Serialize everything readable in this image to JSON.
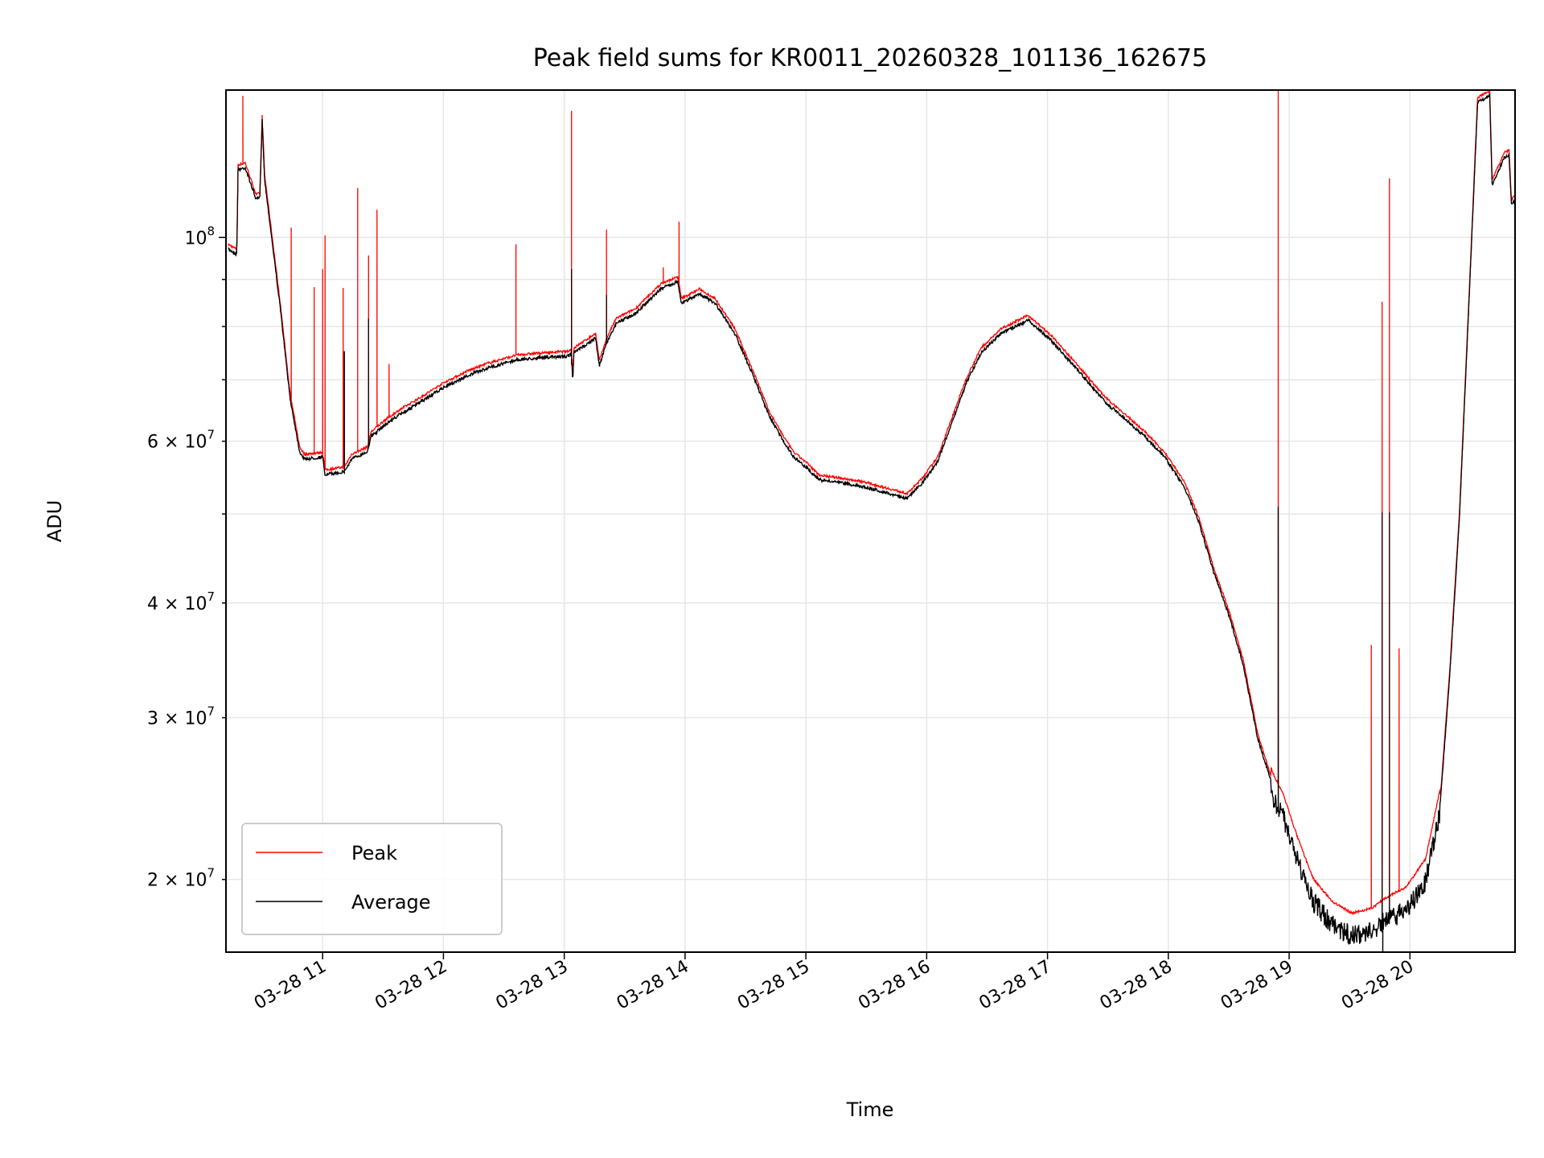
{
  "chart_data": {
    "type": "line",
    "title": "Peak field sums for KR0011_20260328_101136_162675",
    "xlabel": "Time",
    "ylabel": "ADU",
    "xscale": "time (hours of day)",
    "yscale": "log",
    "xlim": [
      10.2,
      20.87
    ],
    "ylim": [
      16670000,
      144700000
    ],
    "grid": true,
    "legend_position": "lower-left",
    "x_ticks": [
      {
        "value": 11,
        "label": "03-28 11"
      },
      {
        "value": 12,
        "label": "03-28 12"
      },
      {
        "value": 13,
        "label": "03-28 13"
      },
      {
        "value": 14,
        "label": "03-28 14"
      },
      {
        "value": 15,
        "label": "03-28 15"
      },
      {
        "value": 16,
        "label": "03-28 16"
      },
      {
        "value": 17,
        "label": "03-28 17"
      },
      {
        "value": 18,
        "label": "03-28 18"
      },
      {
        "value": 19,
        "label": "03-28 19"
      },
      {
        "value": 20,
        "label": "03-28 20"
      }
    ],
    "y_ticks_major": [
      {
        "value": 100000000,
        "mantissa": "10",
        "exp": "8",
        "times": ""
      }
    ],
    "y_ticks_minor_labeled": [
      {
        "value": 20000000,
        "mantissa": "2",
        "times": " × 10",
        "exp": "7"
      },
      {
        "value": 30000000,
        "mantissa": "3",
        "times": " × 10",
        "exp": "7"
      },
      {
        "value": 40000000,
        "mantissa": "4",
        "times": " × 10",
        "exp": "7"
      },
      {
        "value": 60000000,
        "mantissa": "6",
        "times": " × 10",
        "exp": "7"
      }
    ],
    "y_ticks_minor_unlabeled": [
      50000000,
      70000000,
      80000000,
      90000000
    ],
    "series": [
      {
        "name": "Peak",
        "color": "#ff0000",
        "spikes": [
          [
            10.34,
            142600000
          ],
          [
            10.5,
            135400000
          ],
          [
            10.74,
            102500000
          ],
          [
            10.93,
            88300000
          ],
          [
            11.0,
            92400000
          ],
          [
            11.02,
            100500000
          ],
          [
            11.17,
            88100000
          ],
          [
            11.29,
            113200000
          ],
          [
            11.38,
            95600000
          ],
          [
            11.45,
            107200000
          ],
          [
            11.55,
            72800000
          ],
          [
            12.6,
            98300000
          ],
          [
            13.06,
            137400000
          ],
          [
            13.35,
            102000000
          ],
          [
            13.82,
            92800000
          ],
          [
            13.95,
            104000000
          ],
          [
            18.91,
            144700000
          ],
          [
            19.68,
            36000000
          ],
          [
            19.77,
            85100000
          ],
          [
            19.83,
            116000000
          ],
          [
            19.91,
            35700000
          ]
        ]
      },
      {
        "name": "Average",
        "color": "#000000",
        "points": [
          [
            10.22,
            97500000
          ],
          [
            10.29,
            96300000
          ],
          [
            10.3,
            119000000
          ],
          [
            10.36,
            119600000
          ],
          [
            10.45,
            110400000
          ],
          [
            10.48,
            111000000
          ],
          [
            10.5,
            134700000
          ],
          [
            10.52,
            116000000
          ],
          [
            10.57,
            102500000
          ],
          [
            10.65,
            84000000
          ],
          [
            10.73,
            67200000
          ],
          [
            10.81,
            58700000
          ],
          [
            10.85,
            57600000
          ],
          [
            11.0,
            57900000
          ],
          [
            11.02,
            55400000
          ],
          [
            11.18,
            55800000
          ],
          [
            11.24,
            57600000
          ],
          [
            11.37,
            58700000
          ],
          [
            11.4,
            60900000
          ],
          [
            11.51,
            62700000
          ],
          [
            11.63,
            64300000
          ],
          [
            11.83,
            66700000
          ],
          [
            12.0,
            68900000
          ],
          [
            12.2,
            71000000
          ],
          [
            12.37,
            72400000
          ],
          [
            12.61,
            73900000
          ],
          [
            12.77,
            74200000
          ],
          [
            13.04,
            74600000
          ],
          [
            13.06,
            75200000
          ],
          [
            13.07,
            69800000
          ],
          [
            13.08,
            75200000
          ],
          [
            13.26,
            78000000
          ],
          [
            13.29,
            72800000
          ],
          [
            13.35,
            77000000
          ],
          [
            13.43,
            81000000
          ],
          [
            13.59,
            83000000
          ],
          [
            13.8,
            88300000
          ],
          [
            13.94,
            89900000
          ],
          [
            13.97,
            85100000
          ],
          [
            14.12,
            87200000
          ],
          [
            14.25,
            85100000
          ],
          [
            14.41,
            79000000
          ],
          [
            14.57,
            70700000
          ],
          [
            14.7,
            64000000
          ],
          [
            14.82,
            60100000
          ],
          [
            14.9,
            57900000
          ],
          [
            15.0,
            56500000
          ],
          [
            15.11,
            54700000
          ],
          [
            15.47,
            53800000
          ],
          [
            15.84,
            52200000
          ],
          [
            15.96,
            54200000
          ],
          [
            16.09,
            57200000
          ],
          [
            16.21,
            63200000
          ],
          [
            16.33,
            69800000
          ],
          [
            16.45,
            75200000
          ],
          [
            16.62,
            79000000
          ],
          [
            16.84,
            81600000
          ],
          [
            17.03,
            77600000
          ],
          [
            17.27,
            71500000
          ],
          [
            17.48,
            66400000
          ],
          [
            17.64,
            63700000
          ],
          [
            17.81,
            60900000
          ],
          [
            17.97,
            57900000
          ],
          [
            18.13,
            53800000
          ],
          [
            18.25,
            49300000
          ],
          [
            18.38,
            43200000
          ],
          [
            18.5,
            39000000
          ],
          [
            18.62,
            34400000
          ],
          [
            18.74,
            28600000
          ],
          [
            18.87,
            25200000
          ],
          [
            18.95,
            24000000
          ],
          [
            19.07,
            21500000
          ],
          [
            19.2,
            19400000
          ],
          [
            19.36,
            18300000
          ],
          [
            19.52,
            17800000
          ],
          [
            19.68,
            18000000
          ],
          [
            19.8,
            18500000
          ],
          [
            19.97,
            19000000
          ],
          [
            20.13,
            20400000
          ],
          [
            20.25,
            24300000
          ],
          [
            20.33,
            33600000
          ],
          [
            20.41,
            49900000
          ],
          [
            20.49,
            86200000
          ],
          [
            20.56,
            140800000
          ],
          [
            20.66,
            143300000
          ],
          [
            20.68,
            114600000
          ],
          [
            20.78,
            122600000
          ],
          [
            20.82,
            123500000
          ],
          [
            20.84,
            109000000
          ],
          [
            20.87,
            110400000
          ]
        ],
        "spikes": [
          [
            11.18,
            75200000
          ],
          [
            11.38,
            81600000
          ],
          [
            13.06,
            92400000
          ],
          [
            13.35,
            86600000
          ],
          [
            18.91,
            50900000
          ],
          [
            19.77,
            50200000
          ],
          [
            19.83,
            50200000
          ],
          [
            19.775,
            16000000
          ]
        ]
      }
    ]
  }
}
